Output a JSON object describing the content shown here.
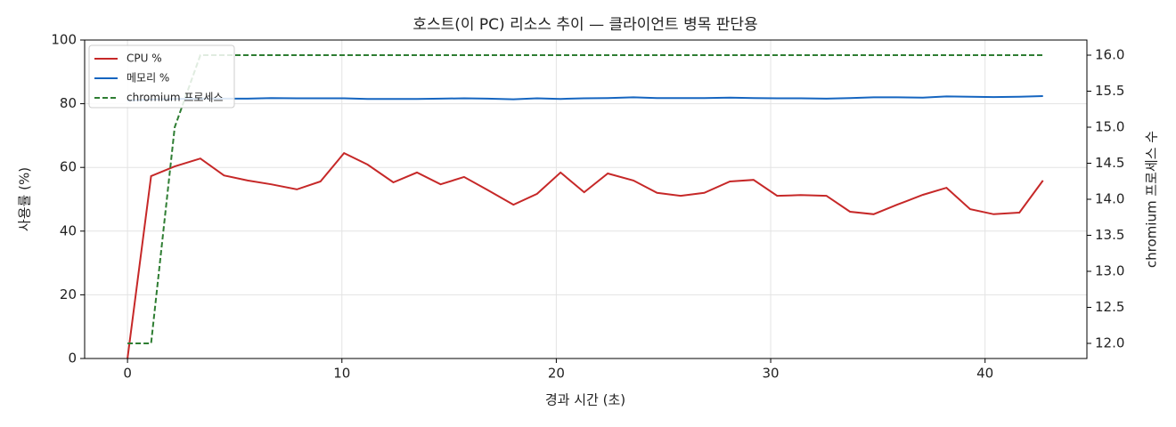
{
  "chart_data": {
    "type": "line",
    "title": "호스트(이 PC) 리소스 추이 — 클라이언트 병목 판단용",
    "x_label": "경과 시간 (초)",
    "y_label": "사용률 (%)",
    "y2_label": "chromium 프로세스 수",
    "x": [
      0,
      1.1,
      2.2,
      3.4,
      4.5,
      5.6,
      6.7,
      7.9,
      9.0,
      10.1,
      11.2,
      12.4,
      13.5,
      14.6,
      15.7,
      16.8,
      18.0,
      19.1,
      20.2,
      21.3,
      22.4,
      23.6,
      24.7,
      25.8,
      26.9,
      28.1,
      29.2,
      30.3,
      31.4,
      32.6,
      33.7,
      34.8,
      35.9,
      37.1,
      38.2,
      39.3,
      40.4,
      41.6,
      42.7
    ],
    "series": [
      {
        "name": "CPU %",
        "color": "#c62828",
        "values": [
          0,
          57.3,
          60.3,
          62.8,
          57.5,
          55.9,
          54.7,
          53.1,
          55.6,
          64.5,
          60.9,
          55.3,
          58.4,
          54.7,
          57.0,
          52.9,
          48.3,
          51.7,
          58.4,
          52.2,
          58.1,
          55.9,
          52.0,
          51.1,
          52.0,
          55.6,
          56.1,
          51.1,
          51.3,
          51.1,
          46.1,
          45.3,
          48.3,
          51.4,
          53.6,
          46.9,
          45.3,
          45.8,
          55.9
        ]
      },
      {
        "name": "메모리 %",
        "color": "#1565c0",
        "values": [
          81.0,
          81.3,
          81.5,
          81.6,
          81.6,
          81.6,
          81.8,
          81.7,
          81.7,
          81.7,
          81.5,
          81.5,
          81.5,
          81.6,
          81.7,
          81.6,
          81.4,
          81.7,
          81.5,
          81.7,
          81.8,
          82.0,
          81.8,
          81.8,
          81.8,
          81.9,
          81.8,
          81.7,
          81.7,
          81.6,
          81.8,
          82.0,
          82.0,
          81.9,
          82.3,
          82.2,
          82.1,
          82.2,
          82.4
        ]
      },
      {
        "name": "chromium 프로세스",
        "color": "#2e7d32",
        "dashed": true,
        "axis": "y2",
        "values": [
          12,
          12,
          15,
          16,
          16,
          16,
          16,
          16,
          16,
          16,
          16,
          16,
          16,
          16,
          16,
          16,
          16,
          16,
          16,
          16,
          16,
          16,
          16,
          16,
          16,
          16,
          16,
          16,
          16,
          16,
          16,
          16,
          16,
          16,
          16,
          16,
          16,
          16,
          16
        ]
      }
    ],
    "xlim": [
      -2,
      44.75
    ],
    "xticks": [
      0,
      10,
      20,
      30,
      40
    ],
    "ylim": [
      0,
      100
    ],
    "yticks": [
      0,
      20,
      40,
      60,
      80,
      100
    ],
    "y2lim": [
      11.79,
      16.21
    ],
    "y2ticks": [
      {
        "value": 12,
        "label": "12.0"
      },
      {
        "value": 12.5,
        "label": "12.5"
      },
      {
        "value": 13,
        "label": "13.0"
      },
      {
        "value": 13.5,
        "label": "13.5"
      },
      {
        "value": 14,
        "label": "14.0"
      },
      {
        "value": 14.5,
        "label": "14.5"
      },
      {
        "value": 15,
        "label": "15.0"
      },
      {
        "value": 15.5,
        "label": "15.5"
      },
      {
        "value": 16,
        "label": "16.0"
      }
    ],
    "grid": true,
    "legend": "upper left"
  }
}
